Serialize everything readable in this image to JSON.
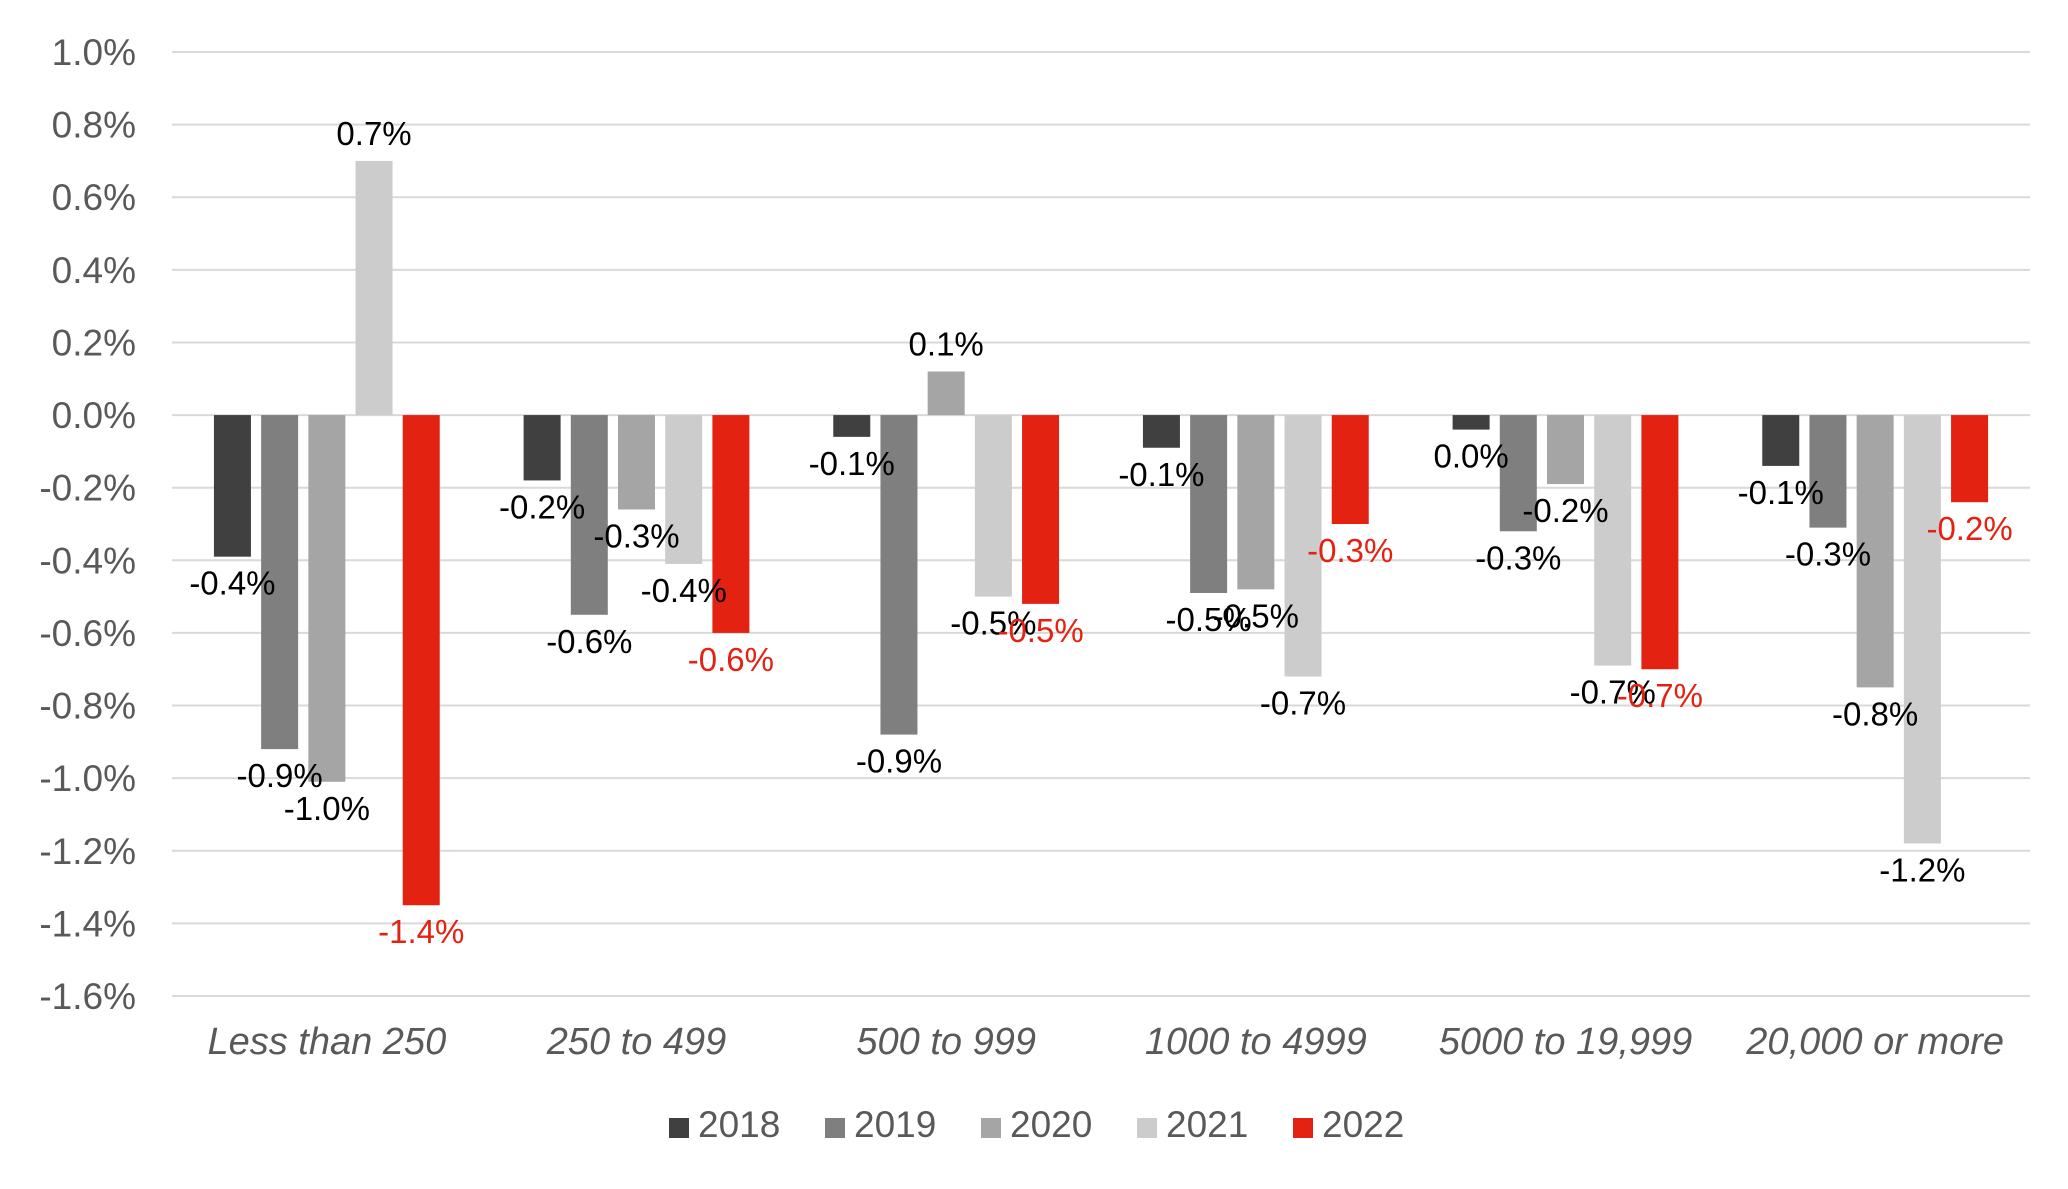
{
  "chart_data": {
    "type": "bar",
    "title": "",
    "xlabel": "",
    "ylabel": "",
    "ylim": [
      -1.6,
      1.0
    ],
    "ytick_step": 0.2,
    "ytick_labels": [
      "1.0%",
      "0.8%",
      "0.6%",
      "0.4%",
      "0.2%",
      "0.0%",
      "-0.2%",
      "-0.4%",
      "-0.6%",
      "-0.8%",
      "-1.0%",
      "-1.2%",
      "-1.4%",
      "-1.6%"
    ],
    "grid": true,
    "legend_position": "bottom",
    "categories": [
      "Less than 250",
      "250 to 499",
      "500 to 999",
      "1000 to 4999",
      "5000 to 19,999",
      "20,000 or more"
    ],
    "series": [
      {
        "name": "2018",
        "color": "#404040",
        "label_color": "#000000",
        "values": [
          -0.39,
          -0.18,
          -0.06,
          -0.09,
          -0.04,
          -0.14
        ],
        "labels": [
          "-0.4%",
          "-0.2%",
          "-0.1%",
          "-0.1%",
          "0.0%",
          "-0.1%"
        ]
      },
      {
        "name": "2019",
        "color": "#7f7f7f",
        "label_color": "#000000",
        "values": [
          -0.92,
          -0.55,
          -0.88,
          -0.49,
          -0.32,
          -0.31
        ],
        "labels": [
          "-0.9%",
          "-0.6%",
          "-0.9%",
          "-0.5%",
          "-0.3%",
          "-0.3%"
        ]
      },
      {
        "name": "2020",
        "color": "#a5a5a5",
        "label_color": "#000000",
        "values": [
          -1.01,
          -0.26,
          0.12,
          -0.48,
          -0.19,
          -0.75
        ],
        "labels": [
          "-1.0%",
          "-0.3%",
          "0.1%",
          "-0.5%",
          "-0.2%",
          "-0.8%"
        ]
      },
      {
        "name": "2021",
        "color": "#cccccc",
        "label_color": "#000000",
        "values": [
          0.7,
          -0.41,
          -0.5,
          -0.72,
          -0.69,
          -1.18
        ],
        "labels": [
          "0.7%",
          "-0.4%",
          "-0.5%",
          "-0.7%",
          "-0.7%",
          "-1.2%"
        ]
      },
      {
        "name": "2022",
        "color": "#e32212",
        "label_color": "#e32212",
        "values": [
          -1.35,
          -0.6,
          -0.52,
          -0.3,
          -0.7,
          -0.24
        ],
        "labels": [
          "-1.4%",
          "-0.6%",
          "-0.5%",
          "-0.3%",
          "-0.7%",
          "-0.2%"
        ]
      }
    ]
  }
}
